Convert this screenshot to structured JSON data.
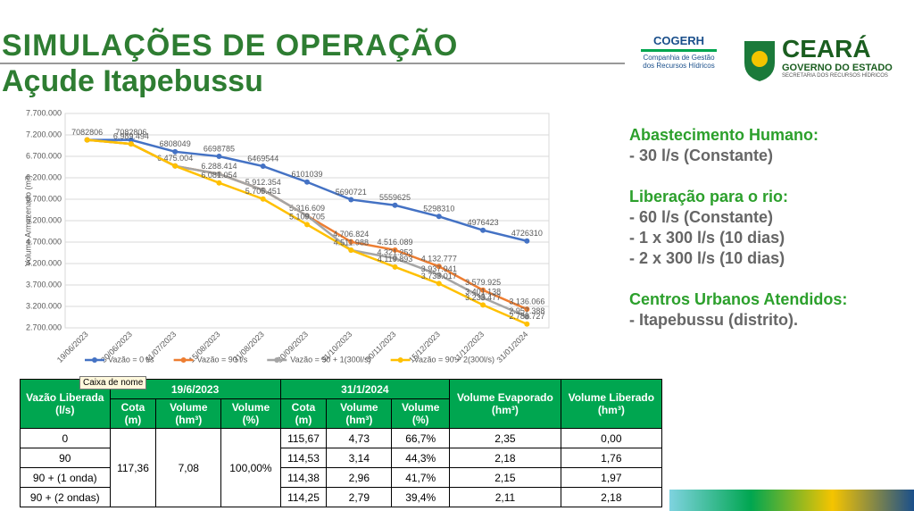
{
  "header": {
    "title": "SIMULAÇÕES DE OPERAÇÃO",
    "subtitle": "Açude Itapebussu"
  },
  "logos": {
    "cogerh": "COGERH",
    "cogerh_line1": "Companhia de Gestão",
    "cogerh_line2": "dos Recursos Hídricos",
    "ceara": "CEARÁ",
    "governo": "GOVERNO DO ESTADO",
    "secretaria": "SECRETARIA DOS RECURSOS HÍDRICOS"
  },
  "chart_data": {
    "type": "line",
    "y_label": "Volume Armazenado (m³)",
    "categories": [
      "19/06/2023",
      "30/06/2023",
      "31/07/2023",
      "15/08/2023",
      "31/08/2023",
      "30/09/2023",
      "31/10/2023",
      "30/11/2023",
      "15/12/2023",
      "31/12/2023",
      "31/01/2024"
    ],
    "ylim": [
      2700000,
      7700000
    ],
    "yticks": [
      {
        "value": 2700000,
        "label": "2.700.000"
      },
      {
        "value": 3200000,
        "label": "3.200.000"
      },
      {
        "value": 3700000,
        "label": "3.700.000"
      },
      {
        "value": 4200000,
        "label": "4.200.000"
      },
      {
        "value": 4700000,
        "label": "4.700.000"
      },
      {
        "value": 5200000,
        "label": "5.200.000"
      },
      {
        "value": 5700000,
        "label": "5.700.000"
      },
      {
        "value": 6200000,
        "label": "6.200.000"
      },
      {
        "value": 6700000,
        "label": "6.700.000"
      },
      {
        "value": 7200000,
        "label": "7.200.000"
      },
      {
        "value": 7700000,
        "label": "7.700.000"
      }
    ],
    "grid": true,
    "series": [
      {
        "name": "Vazão = 0 l/s",
        "color": "#4472c4",
        "values": [
          7082806,
          7082806,
          6808049,
          6698785,
          6469544,
          6101039,
          5690721,
          5559625,
          5298310,
          4976423,
          4726310
        ],
        "value_labels": [
          "7082806",
          "7082806",
          "6808049",
          "6698785",
          "6469544",
          "6101039",
          "5690721",
          "5559625",
          "5298310",
          "4976423",
          "4726310"
        ]
      },
      {
        "name": "Vazão = 90 l/s",
        "color": "#ed7d31",
        "values": [
          7082806,
          6989494,
          6475004,
          6288414,
          5912354,
          5316609,
          4706824,
          4516089,
          4132777,
          3579925,
          3136066
        ],
        "value_labels": [
          null,
          "6.989.494",
          "6.475.004",
          "6.288.414",
          "5.912.354",
          "5.316.609",
          "4.706.824",
          "4.516.089",
          "4.132.777",
          "3.579.925",
          "3.136.066"
        ]
      },
      {
        "name": "Vazão = 90 + 1(300l/s)",
        "color": "#a5a5a5",
        "values": [
          7082806,
          6989494,
          6475004,
          6288414,
          5912354,
          5316609,
          4511988,
          4321253,
          3937941,
          3401138,
          2957388
        ],
        "value_labels": [
          null,
          null,
          null,
          null,
          null,
          null,
          null,
          "4.321.253",
          "3.937.941",
          "3.401.138",
          "2.957.388"
        ]
      },
      {
        "name": "Vazão = 90 + 2(300l/s)",
        "color": "#ffc000",
        "values": [
          7082806,
          6989494,
          6475004,
          6081054,
          5705451,
          5109705,
          4511988,
          4119893,
          3733017,
          3233477,
          2788727
        ],
        "value_labels": [
          null,
          null,
          null,
          "6.081.054",
          "5.705.451",
          "5.109.705",
          "4.511.988",
          "4.119.893",
          "3.733.017",
          "3.233.477",
          "2.788.727"
        ]
      }
    ]
  },
  "tooltip": "Caixa de nome",
  "side": {
    "h1": "Abastecimento Humano:",
    "l1": "- 30 l/s (Constante)",
    "h2": "Liberação para o rio:",
    "l2": "- 60 l/s (Constante)",
    "l3": "- 1 x 300 l/s (10 dias)",
    "l4": "- 2 x 300 l/s (10 dias)",
    "h3": "Centros Urbanos Atendidos:",
    "l5": "- Itapebussu (distrito)."
  },
  "table": {
    "h_vazao": "Vazão Liberada (l/s)",
    "h_date1": "19/6/2023",
    "h_date2": "31/1/2024",
    "h_cota1": "Cota (m)",
    "h_vol1": "Volume (hm³)",
    "h_pct1": "Volume (%)",
    "h_cota2": "Cota (m)",
    "h_vol2": "Volume (hm³)",
    "h_pct2": "Volume (%)",
    "h_evap": "Volume Evaporado (hm³)",
    "h_lib": "Volume Liberado (hm³)",
    "initial": [
      "117,36",
      "7,08",
      "100,00%"
    ],
    "rows": [
      [
        "0",
        "115,67",
        "4,73",
        "66,7%",
        "2,35",
        "0,00"
      ],
      [
        "90",
        "114,53",
        "3,14",
        "44,3%",
        "2,18",
        "1,76"
      ],
      [
        "90 + (1 onda)",
        "114,38",
        "2,96",
        "41,7%",
        "2,15",
        "1,97"
      ],
      [
        "90 + (2 ondas)",
        "114,25",
        "2,79",
        "39,4%",
        "2,11",
        "2,18"
      ]
    ]
  }
}
